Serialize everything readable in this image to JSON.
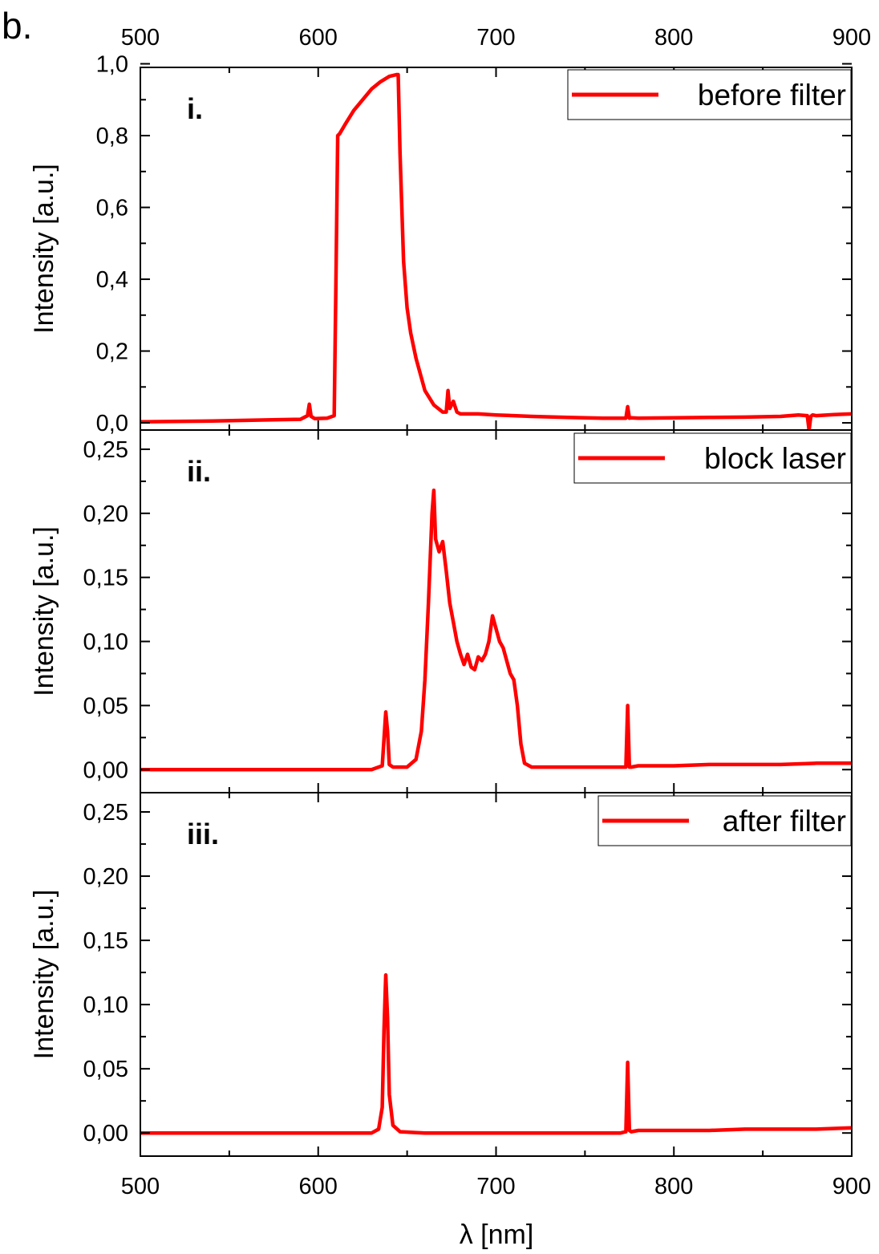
{
  "figure_label": "b.",
  "chart_data": [
    {
      "type": "line",
      "panel_label": "i.",
      "ylabel": "Intensity [a.u.]",
      "xlabel": "",
      "xlim": [
        500,
        900
      ],
      "ylim": [
        -0.02,
        0.99
      ],
      "xticks": [
        "500",
        "600",
        "700",
        "800",
        "900"
      ],
      "yticks": [
        {
          "value": 0.0,
          "label": "0,0"
        },
        {
          "value": 0.2,
          "label": "0,2"
        },
        {
          "value": 0.4,
          "label": "0,4"
        },
        {
          "value": 0.6,
          "label": "0,6"
        },
        {
          "value": 0.8,
          "label": "0,8"
        },
        {
          "value": 1.0,
          "label": "1,0"
        }
      ],
      "legend": {
        "position": "top-right"
      },
      "color": "#ff0000",
      "series": [
        {
          "name": "before filter",
          "x": [
            500,
            520,
            540,
            560,
            580,
            590,
            594,
            595,
            596,
            598,
            605,
            609,
            610,
            611,
            612,
            615,
            620,
            625,
            630,
            635,
            640,
            644,
            645,
            646,
            648,
            650,
            652,
            655,
            660,
            665,
            670,
            672,
            673,
            674,
            676,
            678,
            680,
            690,
            700,
            720,
            740,
            760,
            773,
            774,
            775,
            776,
            780,
            800,
            820,
            840,
            860,
            870,
            875,
            876,
            877,
            878,
            880,
            890,
            900
          ],
          "y": [
            0.003,
            0.004,
            0.005,
            0.007,
            0.009,
            0.01,
            0.02,
            0.052,
            0.018,
            0.012,
            0.013,
            0.02,
            0.4,
            0.8,
            0.805,
            0.83,
            0.87,
            0.9,
            0.93,
            0.95,
            0.965,
            0.97,
            0.97,
            0.75,
            0.45,
            0.32,
            0.25,
            0.18,
            0.09,
            0.05,
            0.03,
            0.03,
            0.09,
            0.04,
            0.06,
            0.03,
            0.025,
            0.025,
            0.022,
            0.018,
            0.015,
            0.013,
            0.013,
            0.045,
            0.013,
            0.014,
            0.013,
            0.014,
            0.015,
            0.016,
            0.018,
            0.022,
            0.02,
            -0.02,
            0.018,
            0.022,
            0.02,
            0.023,
            0.025
          ]
        }
      ]
    },
    {
      "type": "line",
      "panel_label": "ii.",
      "ylabel": "Intensity [a.u.]",
      "xlabel": "",
      "xlim": [
        500,
        900
      ],
      "ylim": [
        -0.018,
        0.265
      ],
      "xticks": [
        "500",
        "600",
        "700",
        "800",
        "900"
      ],
      "yticks": [
        {
          "value": 0.0,
          "label": "0,00"
        },
        {
          "value": 0.05,
          "label": "0,05"
        },
        {
          "value": 0.1,
          "label": "0,10"
        },
        {
          "value": 0.15,
          "label": "0,15"
        },
        {
          "value": 0.2,
          "label": "0,20"
        },
        {
          "value": 0.25,
          "label": "0,25"
        }
      ],
      "legend": {
        "position": "top-right"
      },
      "color": "#ff0000",
      "series": [
        {
          "name": "block laser",
          "x": [
            500,
            550,
            600,
            630,
            636,
            638,
            639,
            640,
            642,
            650,
            655,
            658,
            660,
            662,
            664,
            665,
            666,
            668,
            670,
            672,
            674,
            676,
            678,
            680,
            682,
            684,
            686,
            688,
            690,
            692,
            694,
            696,
            698,
            700,
            702,
            704,
            706,
            708,
            710,
            712,
            714,
            716,
            720,
            740,
            760,
            770,
            773,
            774,
            775,
            776,
            780,
            800,
            820,
            840,
            860,
            880,
            900
          ],
          "y": [
            0.0,
            0.0,
            0.0,
            0.0,
            0.003,
            0.045,
            0.03,
            0.004,
            0.002,
            0.002,
            0.008,
            0.03,
            0.07,
            0.13,
            0.2,
            0.218,
            0.18,
            0.17,
            0.178,
            0.155,
            0.13,
            0.115,
            0.1,
            0.09,
            0.082,
            0.09,
            0.08,
            0.078,
            0.088,
            0.085,
            0.09,
            0.1,
            0.12,
            0.11,
            0.1,
            0.095,
            0.085,
            0.075,
            0.07,
            0.05,
            0.02,
            0.005,
            0.002,
            0.002,
            0.002,
            0.002,
            0.002,
            0.05,
            0.002,
            0.002,
            0.003,
            0.003,
            0.004,
            0.004,
            0.004,
            0.005,
            0.005
          ]
        }
      ]
    },
    {
      "type": "line",
      "panel_label": "iii.",
      "ylabel": "Intensity [a.u.]",
      "xlabel": "λ [nm]",
      "xlim": [
        500,
        900
      ],
      "ylim": [
        -0.018,
        0.265
      ],
      "xticks": [
        "500",
        "600",
        "700",
        "800",
        "900"
      ],
      "yticks": [
        {
          "value": 0.0,
          "label": "0,00"
        },
        {
          "value": 0.05,
          "label": "0,05"
        },
        {
          "value": 0.1,
          "label": "0,10"
        },
        {
          "value": 0.15,
          "label": "0,15"
        },
        {
          "value": 0.2,
          "label": "0,20"
        },
        {
          "value": 0.25,
          "label": "0,25"
        }
      ],
      "legend": {
        "position": "top-right"
      },
      "color": "#ff0000",
      "series": [
        {
          "name": "after filter",
          "x": [
            500,
            550,
            600,
            630,
            634,
            636,
            637,
            638,
            639,
            640,
            642,
            646,
            660,
            700,
            740,
            770,
            773,
            774,
            775,
            776,
            780,
            800,
            820,
            840,
            860,
            880,
            900
          ],
          "y": [
            0.0,
            0.0,
            0.0,
            0.0,
            0.003,
            0.02,
            0.08,
            0.123,
            0.09,
            0.03,
            0.006,
            0.001,
            0.0,
            0.0,
            0.0,
            0.0,
            0.001,
            0.055,
            0.002,
            0.001,
            0.002,
            0.002,
            0.002,
            0.003,
            0.003,
            0.003,
            0.004
          ]
        }
      ]
    }
  ]
}
